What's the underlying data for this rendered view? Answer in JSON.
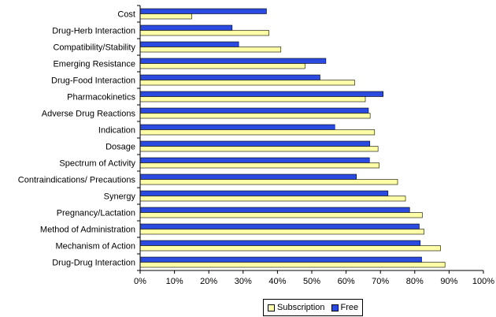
{
  "chart_data": {
    "type": "bar",
    "orientation": "horizontal",
    "categories": [
      "Cost",
      "Drug-Herb Interaction",
      "Compatibility/Stability",
      "Emerging Resistance",
      "Drug-Food Interaction",
      "Pharmacokinetics",
      "Adverse Drug Reactions",
      "Indication",
      "Dosage",
      "Spectrum of Activity",
      "Contraindications/ Precautions",
      "Synergy",
      "Pregnancy/Lactation",
      "Method of Administration",
      "Mechanism of Action",
      "Drug-Drug Interaction"
    ],
    "series": [
      {
        "name": "Free",
        "color": "#2b4be0",
        "values": [
          36.8,
          26.8,
          28.7,
          54.1,
          52.4,
          70.8,
          66.5,
          56.7,
          66.9,
          66.8,
          63.0,
          72.2,
          78.5,
          81.3,
          81.6,
          82.0
        ]
      },
      {
        "name": "Subscription",
        "color": "#ffffa8",
        "values": [
          15.0,
          37.5,
          41.0,
          48.0,
          62.5,
          65.6,
          67.0,
          68.3,
          69.3,
          69.6,
          75.0,
          77.3,
          82.2,
          82.7,
          87.5,
          88.8
        ]
      }
    ],
    "x_ticks": [
      "0%",
      "10%",
      "20%",
      "30%",
      "40%",
      "50%",
      "60%",
      "70%",
      "80%",
      "90%",
      "100%"
    ],
    "xlim": [
      0,
      100
    ],
    "legend": [
      "Subscription",
      "Free"
    ],
    "legend_position": "bottom",
    "grid": false,
    "title": "",
    "xlabel": "",
    "ylabel": ""
  }
}
